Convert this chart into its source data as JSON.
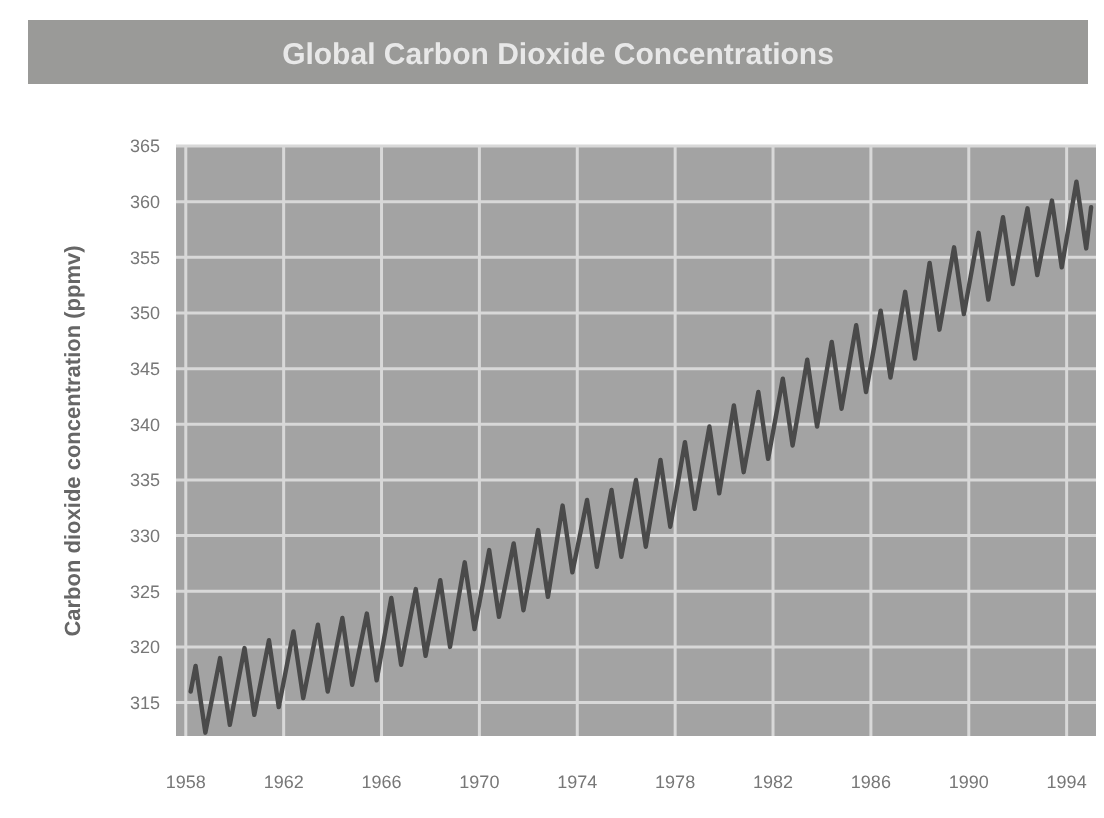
{
  "chart_data": {
    "type": "line",
    "title": "Global Carbon Dioxide Concentrations",
    "ylabel": "Carbon dioxide concentration (ppmv)",
    "x": [
      1958.2,
      1958.4,
      1958.8,
      1959.4,
      1959.8,
      1960.4,
      1960.8,
      1961.4,
      1961.8,
      1962.4,
      1962.8,
      1963.4,
      1963.8,
      1964.4,
      1964.8,
      1965.4,
      1965.8,
      1966.4,
      1966.8,
      1967.4,
      1967.8,
      1968.4,
      1968.8,
      1969.4,
      1969.8,
      1970.4,
      1970.8,
      1971.4,
      1971.8,
      1972.4,
      1972.8,
      1973.4,
      1973.8,
      1974.4,
      1974.8,
      1975.4,
      1975.8,
      1976.4,
      1976.8,
      1977.4,
      1977.8,
      1978.4,
      1978.8,
      1979.4,
      1979.8,
      1980.4,
      1980.8,
      1981.4,
      1981.8,
      1982.4,
      1982.8,
      1983.4,
      1983.8,
      1984.4,
      1984.8,
      1985.4,
      1985.8,
      1986.4,
      1986.8,
      1987.4,
      1987.8,
      1988.4,
      1988.8,
      1989.4,
      1989.8,
      1990.4,
      1990.8,
      1991.4,
      1991.8,
      1992.4,
      1992.8,
      1993.4,
      1993.8,
      1994.4,
      1994.8,
      1995.0
    ],
    "series": [
      {
        "color": "#4a4a4a",
        "values": [
          316.0,
          318.3,
          312.3,
          319.0,
          313.0,
          319.9,
          313.9,
          320.6,
          314.6,
          321.4,
          315.4,
          322.0,
          316.0,
          322.6,
          316.6,
          323.0,
          317.0,
          324.4,
          318.4,
          325.2,
          319.2,
          326.0,
          320.0,
          327.6,
          321.6,
          328.7,
          322.7,
          329.3,
          323.3,
          330.5,
          324.5,
          332.7,
          326.7,
          333.2,
          327.2,
          334.1,
          328.1,
          335.0,
          329.0,
          336.8,
          330.8,
          338.4,
          332.4,
          339.8,
          333.8,
          341.7,
          335.7,
          342.9,
          336.9,
          344.1,
          338.1,
          345.8,
          339.8,
          347.4,
          341.4,
          348.9,
          342.9,
          350.2,
          344.2,
          351.9,
          345.9,
          354.5,
          348.5,
          355.9,
          349.9,
          357.2,
          351.2,
          358.6,
          352.6,
          359.4,
          353.4,
          360.1,
          354.1,
          361.8,
          355.8,
          359.5
        ]
      }
    ],
    "xlim": [
      1957.6,
      1995.2
    ],
    "xticks": [
      1958,
      1962,
      1966,
      1970,
      1974,
      1978,
      1982,
      1986,
      1990,
      1994
    ],
    "ylim": [
      312,
      365
    ],
    "yticks": [
      315,
      320,
      325,
      330,
      335,
      340,
      345,
      350,
      355,
      360,
      365
    ],
    "grid": true,
    "marker": "none",
    "line_style": "solid"
  }
}
